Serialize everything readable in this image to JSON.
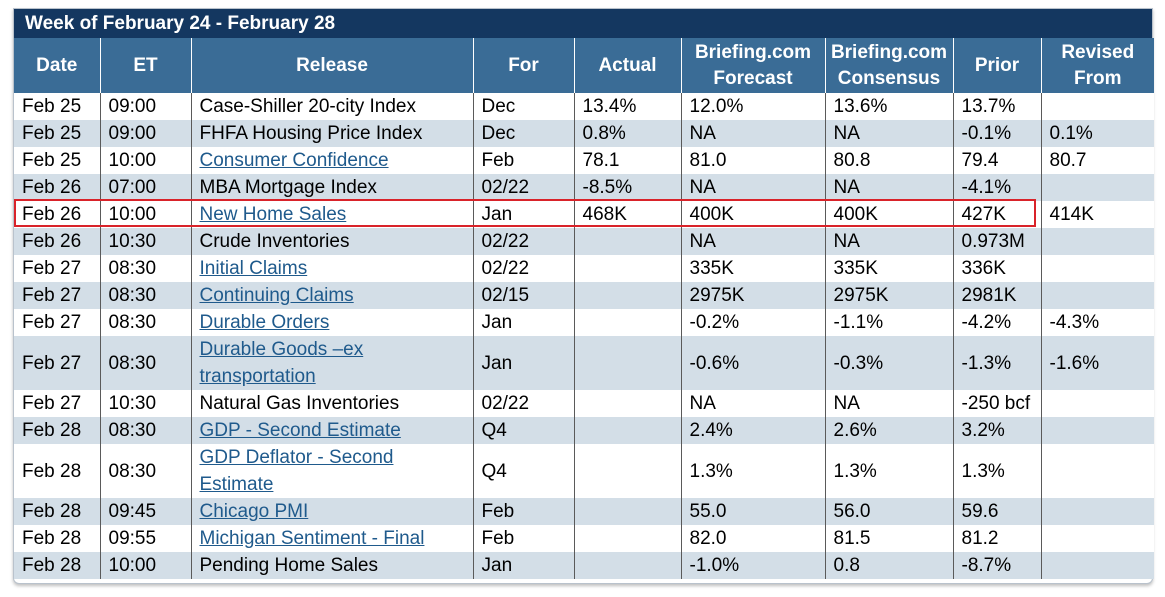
{
  "week_title": "Week of February 24 - February 28",
  "columns": {
    "date": "Date",
    "et": "ET",
    "release": "Release",
    "for": "For",
    "actual": "Actual",
    "forecast_line1": "Briefing.com",
    "forecast_line2": "Forecast",
    "consensus_line1": "Briefing.com",
    "consensus_line2": "Consensus",
    "prior": "Prior",
    "revised_line1": "Revised",
    "revised_line2": "From"
  },
  "rows": [
    {
      "date": "Feb 25",
      "et": "09:00",
      "release": "Case-Shiller 20-city Index",
      "link": false,
      "for": "Dec",
      "actual": "13.4%",
      "forecast": "12.0%",
      "consensus": "13.6%",
      "prior": "13.7%",
      "revised": ""
    },
    {
      "date": "Feb 25",
      "et": "09:00",
      "release": "FHFA Housing Price Index",
      "link": false,
      "for": "Dec",
      "actual": "0.8%",
      "forecast": "NA",
      "consensus": "NA",
      "prior": "-0.1%",
      "revised": "0.1%"
    },
    {
      "date": "Feb 25",
      "et": "10:00",
      "release": "Consumer Confidence",
      "link": true,
      "for": "Feb",
      "actual": "78.1",
      "forecast": "81.0",
      "consensus": "80.8",
      "prior": "79.4",
      "revised": "80.7"
    },
    {
      "date": "Feb 26",
      "et": "07:00",
      "release": "MBA Mortgage Index",
      "link": false,
      "for": "02/22",
      "actual": "-8.5%",
      "forecast": "NA",
      "consensus": "NA",
      "prior": "-4.1%",
      "revised": ""
    },
    {
      "date": "Feb 26",
      "et": "10:00",
      "release": "New Home Sales",
      "link": true,
      "for": "Jan",
      "actual": "468K",
      "forecast": "400K",
      "consensus": "400K",
      "prior": "427K",
      "revised": "414K",
      "highlighted": true
    },
    {
      "date": "Feb 26",
      "et": "10:30",
      "release": "Crude Inventories",
      "link": false,
      "for": "02/22",
      "actual": "",
      "forecast": "NA",
      "consensus": "NA",
      "prior": "0.973M",
      "revised": ""
    },
    {
      "date": "Feb 27",
      "et": "08:30",
      "release": "Initial Claims",
      "link": true,
      "for": "02/22",
      "actual": "",
      "forecast": "335K",
      "consensus": "335K",
      "prior": "336K",
      "revised": ""
    },
    {
      "date": "Feb 27",
      "et": "08:30",
      "release": "Continuing Claims",
      "link": true,
      "for": "02/15",
      "actual": "",
      "forecast": "2975K",
      "consensus": "2975K",
      "prior": "2981K",
      "revised": ""
    },
    {
      "date": "Feb 27",
      "et": "08:30",
      "release": "Durable Orders",
      "link": true,
      "for": "Jan",
      "actual": "",
      "forecast": "-0.2%",
      "consensus": "-1.1%",
      "prior": "-4.2%",
      "revised": "-4.3%"
    },
    {
      "date": "Feb 27",
      "et": "08:30",
      "release": "Durable Goods –ex transportation",
      "link": true,
      "tall": true,
      "for": "Jan",
      "actual": "",
      "forecast": "-0.6%",
      "consensus": "-0.3%",
      "prior": "-1.3%",
      "revised": "-1.6%"
    },
    {
      "date": "Feb 27",
      "et": "10:30",
      "release": "Natural Gas Inventories",
      "link": false,
      "for": "02/22",
      "actual": "",
      "forecast": "NA",
      "consensus": "NA",
      "prior": "-250 bcf",
      "revised": ""
    },
    {
      "date": "Feb 28",
      "et": "08:30",
      "release": "GDP - Second Estimate",
      "link": true,
      "for": "Q4",
      "actual": "",
      "forecast": "2.4%",
      "consensus": "2.6%",
      "prior": "3.2%",
      "revised": ""
    },
    {
      "date": "Feb 28",
      "et": "08:30",
      "release": "GDP Deflator - Second Estimate",
      "link": true,
      "tall": true,
      "for": "Q4",
      "actual": "",
      "forecast": "1.3%",
      "consensus": "1.3%",
      "prior": "1.3%",
      "revised": ""
    },
    {
      "date": "Feb 28",
      "et": "09:45",
      "release": "Chicago PMI",
      "link": true,
      "for": "Feb",
      "actual": "",
      "forecast": "55.0",
      "consensus": "56.0",
      "prior": "59.6",
      "revised": ""
    },
    {
      "date": "Feb 28",
      "et": "09:55",
      "release": "Michigan Sentiment - Final",
      "link": true,
      "for": "Feb",
      "actual": "",
      "forecast": "82.0",
      "consensus": "81.5",
      "prior": "81.2",
      "revised": ""
    },
    {
      "date": "Feb 28",
      "et": "10:00",
      "release": "Pending Home Sales",
      "link": false,
      "for": "Jan",
      "actual": "",
      "forecast": "-1.0%",
      "consensus": "0.8",
      "prior": "-8.7%",
      "revised": ""
    }
  ]
}
